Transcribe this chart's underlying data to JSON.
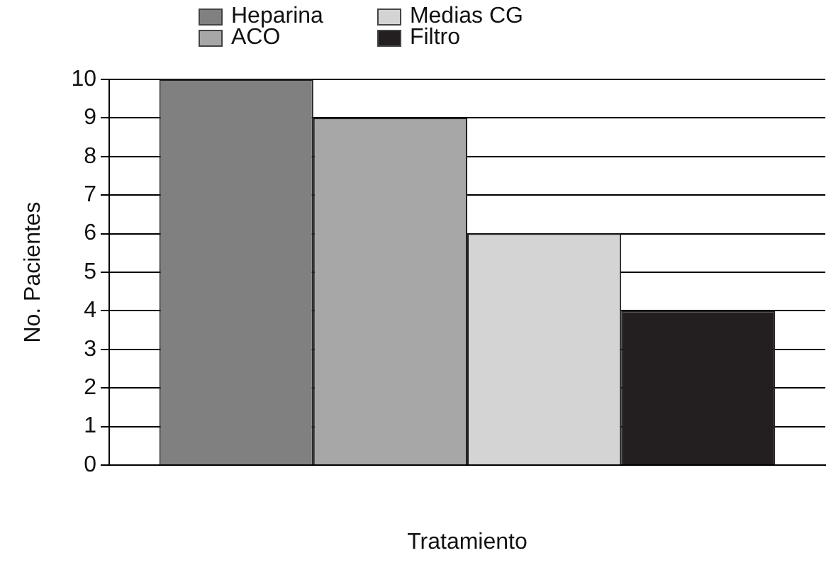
{
  "chart_data": {
    "type": "bar",
    "xlabel": "Tratamiento",
    "ylabel": "No. Pacientes",
    "categories": [
      null
    ],
    "series": [
      {
        "name": "Heparina",
        "color": "#808080",
        "values": [
          10
        ]
      },
      {
        "name": "ACO",
        "color": "#a7a7a7",
        "values": [
          9
        ]
      },
      {
        "name": "Medias CG",
        "color": "#d4d4d4",
        "values": [
          6
        ]
      },
      {
        "name": "Filtro",
        "color": "#231f20",
        "values": [
          4
        ]
      }
    ],
    "ylim": [
      0,
      10
    ],
    "yticks": [
      0,
      1,
      2,
      3,
      4,
      5,
      6,
      7,
      8,
      9,
      10
    ],
    "grid": "y",
    "legend": "top"
  }
}
